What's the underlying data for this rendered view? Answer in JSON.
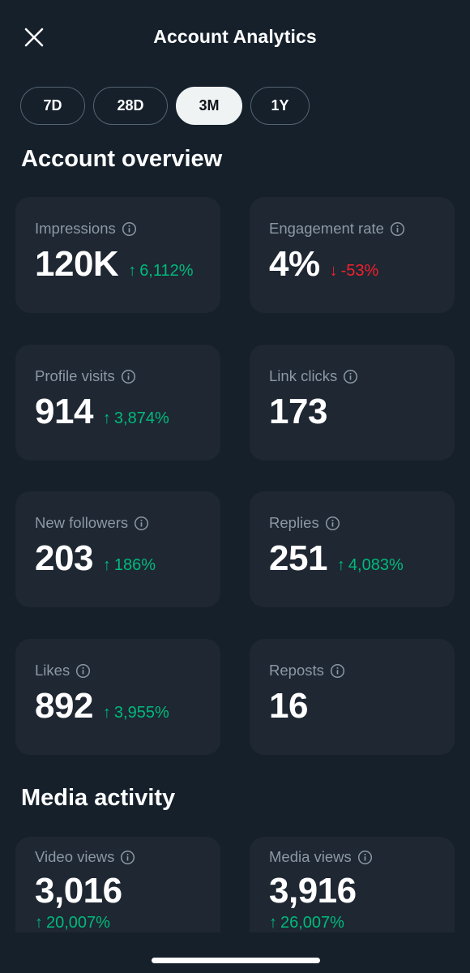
{
  "header": {
    "title": "Account Analytics",
    "close_icon": "close-icon"
  },
  "ranges": [
    {
      "label": "7D",
      "active": false
    },
    {
      "label": "28D",
      "active": false
    },
    {
      "label": "3M",
      "active": true
    },
    {
      "label": "1Y",
      "active": false
    }
  ],
  "overview": {
    "title": "Account overview",
    "cards": [
      {
        "label": "Impressions",
        "value": "120K",
        "change": "6,112%",
        "direction": "up"
      },
      {
        "label": "Engagement rate",
        "value": "4%",
        "change": "-53%",
        "direction": "down"
      },
      {
        "label": "Profile visits",
        "value": "914",
        "change": "3,874%",
        "direction": "up"
      },
      {
        "label": "Link clicks",
        "value": "173",
        "change": "",
        "direction": "none"
      },
      {
        "label": "New followers",
        "value": "203",
        "change": "186%",
        "direction": "up"
      },
      {
        "label": "Replies",
        "value": "251",
        "change": "4,083%",
        "direction": "up"
      },
      {
        "label": "Likes",
        "value": "892",
        "change": "3,955%",
        "direction": "up"
      },
      {
        "label": "Reposts",
        "value": "16",
        "change": "",
        "direction": "none"
      }
    ]
  },
  "media": {
    "title": "Media activity",
    "cards": [
      {
        "label": "Video views",
        "value": "3,016",
        "change": "20,007%",
        "direction": "up"
      },
      {
        "label": "Media views",
        "value": "3,916",
        "change": "26,007%",
        "direction": "up"
      }
    ]
  },
  "colors": {
    "background": "#15202b",
    "card": "#1e2732",
    "positive": "#00ba7c",
    "negative": "#f4212e",
    "muted": "#8b98a5"
  }
}
